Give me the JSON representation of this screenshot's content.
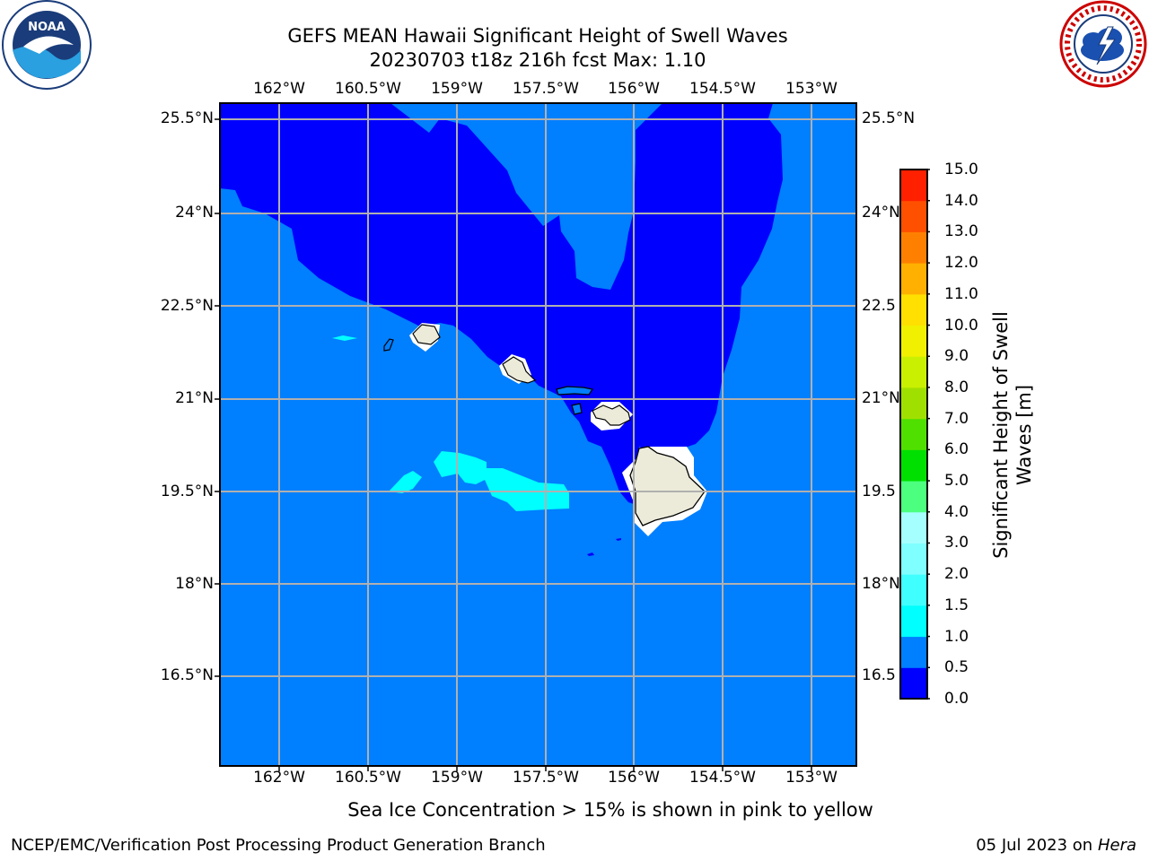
{
  "title": {
    "line1": "GEFS MEAN Hawaii Significant Height of Swell Waves",
    "line2": "20230703 t18z 216h fcst   Max: 1.10"
  },
  "logos": {
    "left": "noaa-logo",
    "right": "nws-logo"
  },
  "map": {
    "lon_ticks": [
      "162°W",
      "160.5°W",
      "159°W",
      "157.5°W",
      "156°W",
      "154.5°W",
      "153°W"
    ],
    "lat_ticks": [
      "25.5°N",
      "24°N",
      "22.5°N",
      "21°N",
      "19.5°N",
      "18°N",
      "16.5°N"
    ],
    "lat_ticks_right": [
      "25.5°N",
      "24°N",
      "22.5",
      "21°N",
      "19.5",
      "18°N",
      "16.5"
    ],
    "fill_colors": {
      "band_0_0_5": "#0000ff",
      "band_0_5_1_0": "#007fff",
      "band_1_0_1_5": "#00ffff",
      "land": "#ecebda",
      "grid": "#b0b0b0"
    }
  },
  "colorbar": {
    "label": "Significant Height of Swell Waves [m]",
    "ticks": [
      "0.0",
      "0.5",
      "1.0",
      "1.5",
      "2.0",
      "3.0",
      "4.0",
      "5.0",
      "6.0",
      "7.0",
      "8.0",
      "9.0",
      "10.0",
      "11.0",
      "12.0",
      "13.0",
      "14.0",
      "15.0"
    ],
    "colors": [
      "#0000ff",
      "#007fff",
      "#00ffff",
      "#40ffff",
      "#7fffff",
      "#a5ffff",
      "#4cff7f",
      "#00e000",
      "#50e000",
      "#a0e000",
      "#c8f000",
      "#f0f000",
      "#ffe000",
      "#ffb000",
      "#ff8000",
      "#ff5000",
      "#ff2000",
      "#ff0000"
    ]
  },
  "note": "Sea Ice Concentration > 15% is shown in pink to yellow",
  "footer": {
    "left": "NCEP/EMC/Verification Post Processing Product Generation Branch",
    "right_prefix": "05 Jul 2023 on ",
    "right_host": "Hera"
  }
}
